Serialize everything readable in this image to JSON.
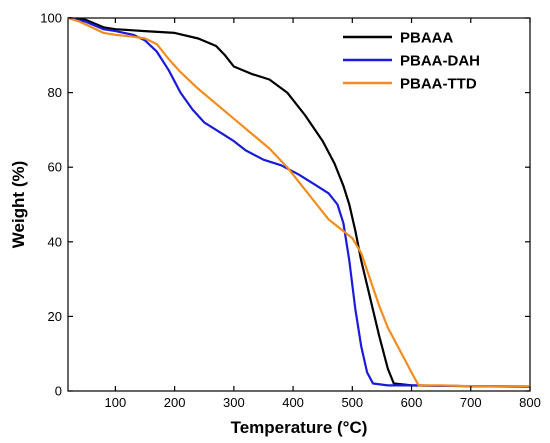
{
  "chart_data": {
    "type": "line",
    "title": "",
    "xlabel": "Temperature (°C)",
    "ylabel": "Weight (%)",
    "xlim": [
      20,
      800
    ],
    "ylim": [
      0,
      100
    ],
    "x_ticks": [
      100,
      200,
      300,
      400,
      500,
      600,
      700,
      800
    ],
    "y_ticks": [
      0,
      20,
      40,
      60,
      80,
      100
    ],
    "grid": false,
    "legend_position": "top-right",
    "series": [
      {
        "name": "PBAAA",
        "color": "#000000",
        "points": [
          [
            20,
            100
          ],
          [
            50,
            99.5
          ],
          [
            80,
            97.5
          ],
          [
            100,
            97
          ],
          [
            150,
            96.5
          ],
          [
            200,
            96
          ],
          [
            240,
            94.5
          ],
          [
            270,
            92.5
          ],
          [
            285,
            90
          ],
          [
            300,
            87
          ],
          [
            330,
            85
          ],
          [
            360,
            83.5
          ],
          [
            390,
            80
          ],
          [
            420,
            74
          ],
          [
            450,
            67
          ],
          [
            470,
            61
          ],
          [
            485,
            55
          ],
          [
            495,
            50
          ],
          [
            505,
            43
          ],
          [
            515,
            35
          ],
          [
            530,
            25
          ],
          [
            545,
            15
          ],
          [
            560,
            6
          ],
          [
            570,
            2
          ],
          [
            600,
            1.5
          ],
          [
            700,
            1.3
          ],
          [
            800,
            1.2
          ]
        ]
      },
      {
        "name": "PBAA-DAH",
        "color": "#1a1adb",
        "points": [
          [
            20,
            100
          ],
          [
            50,
            99
          ],
          [
            80,
            97
          ],
          [
            100,
            96.5
          ],
          [
            130,
            95.5
          ],
          [
            150,
            94
          ],
          [
            170,
            91
          ],
          [
            190,
            86
          ],
          [
            210,
            80
          ],
          [
            230,
            75.5
          ],
          [
            250,
            72
          ],
          [
            280,
            69
          ],
          [
            300,
            67
          ],
          [
            320,
            64.5
          ],
          [
            350,
            62
          ],
          [
            380,
            60.5
          ],
          [
            410,
            58
          ],
          [
            440,
            55
          ],
          [
            460,
            53
          ],
          [
            475,
            50
          ],
          [
            485,
            45
          ],
          [
            495,
            35
          ],
          [
            505,
            22
          ],
          [
            515,
            12
          ],
          [
            525,
            5
          ],
          [
            535,
            2
          ],
          [
            560,
            1.5
          ],
          [
            600,
            1.5
          ],
          [
            700,
            1.3
          ],
          [
            800,
            1.1
          ]
        ]
      },
      {
        "name": "PBAA-TTD",
        "color": "#f28c1e",
        "points": [
          [
            20,
            100
          ],
          [
            40,
            99
          ],
          [
            60,
            97.5
          ],
          [
            80,
            96
          ],
          [
            100,
            95.5
          ],
          [
            130,
            95
          ],
          [
            150,
            94.5
          ],
          [
            170,
            93
          ],
          [
            190,
            89
          ],
          [
            210,
            85.5
          ],
          [
            240,
            81
          ],
          [
            270,
            77
          ],
          [
            300,
            73
          ],
          [
            330,
            69
          ],
          [
            360,
            65
          ],
          [
            390,
            60
          ],
          [
            420,
            54
          ],
          [
            440,
            50
          ],
          [
            460,
            46
          ],
          [
            480,
            43.5
          ],
          [
            500,
            41
          ],
          [
            515,
            37
          ],
          [
            530,
            30
          ],
          [
            545,
            23
          ],
          [
            560,
            17
          ],
          [
            580,
            11
          ],
          [
            600,
            5
          ],
          [
            612,
            1.5
          ],
          [
            650,
            1.5
          ],
          [
            700,
            1.3
          ],
          [
            800,
            1.2
          ]
        ]
      }
    ]
  }
}
